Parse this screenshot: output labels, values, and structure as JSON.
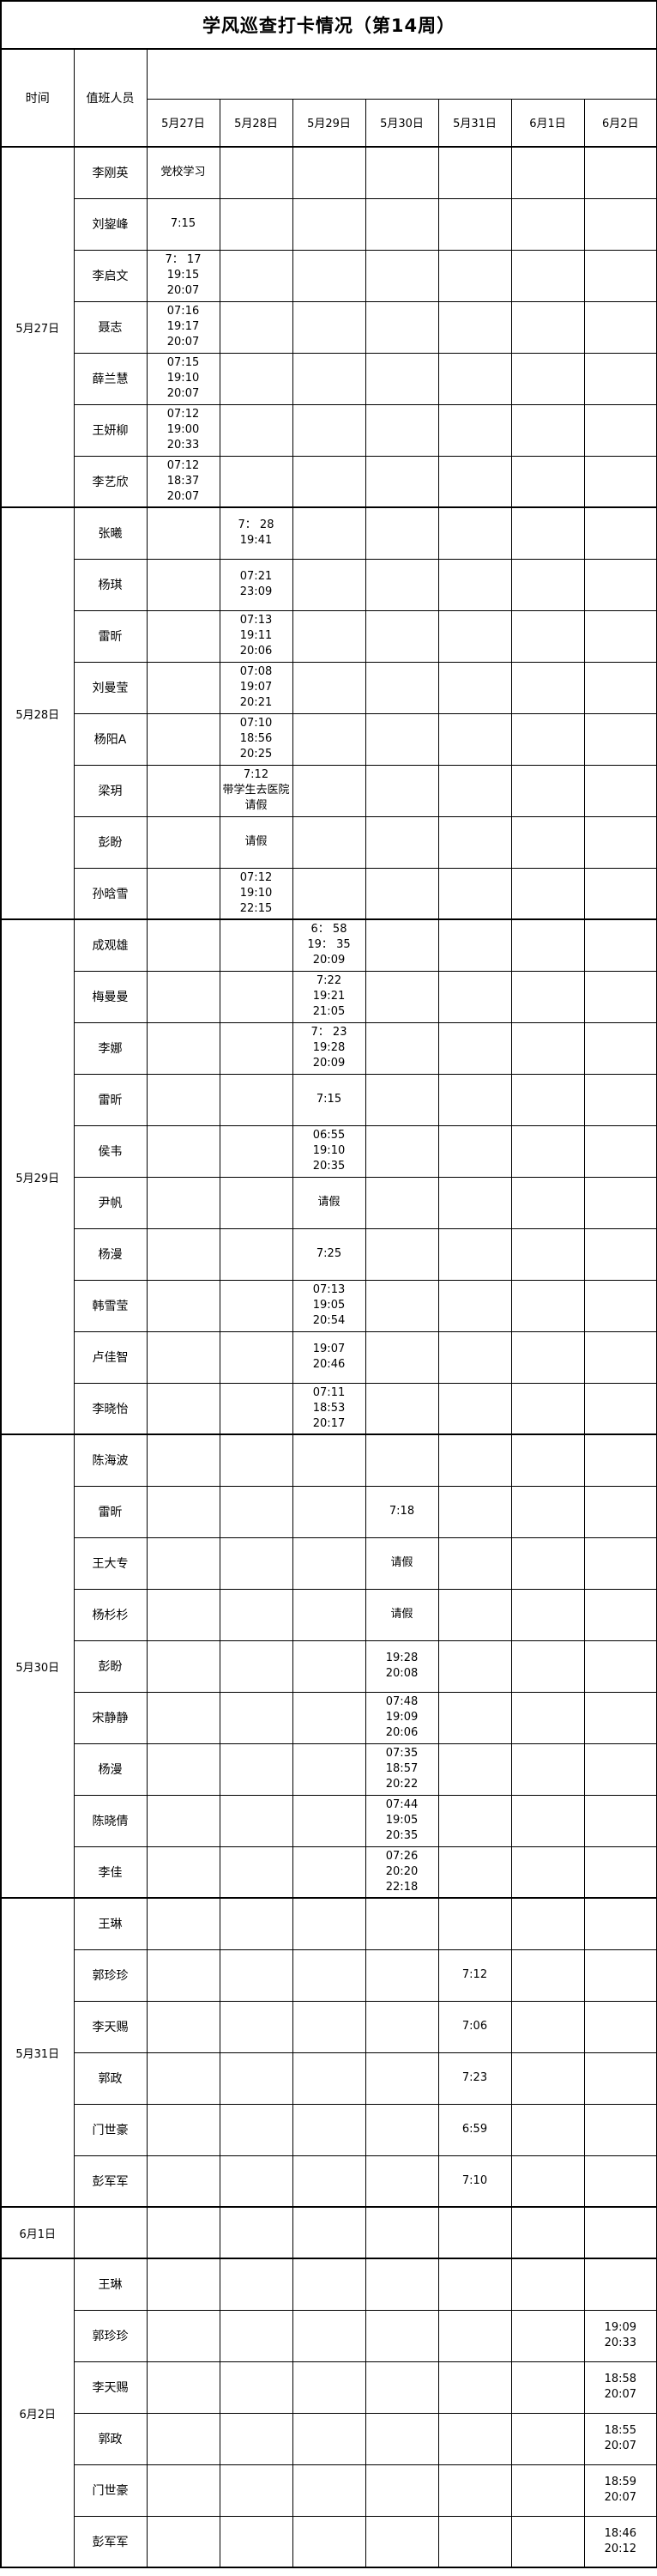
{
  "title": "学风巡查打卡情况（第14周）",
  "header": {
    "time_label": "时间",
    "staff_label": "值班人员",
    "dates": [
      "5月27日",
      "5月28日",
      "5月29日",
      "5月30日",
      "5月31日",
      "6月1日",
      "6月2日"
    ]
  },
  "groups": [
    {
      "date": "5月27日",
      "col": 0,
      "rows": [
        {
          "name": "李刚英",
          "times": [
            "党校学习"
          ]
        },
        {
          "name": "刘鋆峰",
          "times": [
            "7:15"
          ]
        },
        {
          "name": "李启文",
          "times": [
            "7： 17",
            "19:15",
            "20:07"
          ]
        },
        {
          "name": "聂志",
          "times": [
            "07:16",
            "19:17",
            "20:07"
          ]
        },
        {
          "name": "薛兰慧",
          "times": [
            "07:15",
            "19:10",
            "20:07"
          ]
        },
        {
          "name": "王妍柳",
          "times": [
            "07:12",
            "19:00",
            "20:33"
          ]
        },
        {
          "name": "李艺欣",
          "times": [
            "07:12",
            "18:37",
            "20:07"
          ]
        }
      ]
    },
    {
      "date": "5月28日",
      "col": 1,
      "rows": [
        {
          "name": "张曦",
          "times": [
            "7： 28",
            "19:41"
          ]
        },
        {
          "name": "杨琪",
          "times": [
            "07:21",
            "23:09"
          ]
        },
        {
          "name": "雷昕",
          "times": [
            "07:13",
            "19:11",
            "20:06"
          ]
        },
        {
          "name": "刘曼莹",
          "times": [
            "07:08",
            "19:07",
            "20:21"
          ]
        },
        {
          "name": "杨阳A",
          "times": [
            "07:10",
            "18:56",
            "20:25"
          ]
        },
        {
          "name": "梁玥",
          "times": [
            "7:12",
            "带学生去医院请假"
          ]
        },
        {
          "name": "彭盼",
          "times": [
            "请假"
          ]
        },
        {
          "name": "孙晗雪",
          "times": [
            "07:12",
            "19:10",
            "22:15"
          ]
        }
      ]
    },
    {
      "date": "5月29日",
      "col": 2,
      "rows": [
        {
          "name": "成观雄",
          "times": [
            "6： 58",
            "19： 35",
            "20:09"
          ]
        },
        {
          "name": "梅曼曼",
          "times": [
            "7:22",
            "19:21",
            "21:05"
          ]
        },
        {
          "name": "李娜",
          "times": [
            "7： 23",
            "19:28",
            "20:09"
          ]
        },
        {
          "name": "雷昕",
          "times": [
            "7:15"
          ]
        },
        {
          "name": "侯韦",
          "times": [
            "06:55",
            "19:10",
            "20:35"
          ]
        },
        {
          "name": "尹帆",
          "times": [
            "请假"
          ]
        },
        {
          "name": "杨漫",
          "times": [
            "7:25"
          ]
        },
        {
          "name": "韩雪莹",
          "times": [
            "07:13",
            "19:05",
            "20:54"
          ]
        },
        {
          "name": "卢佳智",
          "times": [
            "19:07",
            "20:46"
          ]
        },
        {
          "name": "李晓怡",
          "times": [
            "07:11",
            "18:53",
            "20:17"
          ]
        }
      ]
    },
    {
      "date": "5月30日",
      "col": 3,
      "rows": [
        {
          "name": "陈海波",
          "times": []
        },
        {
          "name": "雷昕",
          "times": [
            "7:18"
          ]
        },
        {
          "name": "王大专",
          "times": [
            "请假"
          ]
        },
        {
          "name": "杨杉杉",
          "times": [
            "请假"
          ]
        },
        {
          "name": "彭盼",
          "times": [
            "19:28",
            "20:08"
          ]
        },
        {
          "name": "宋静静",
          "times": [
            "07:48",
            "19:09",
            "20:06"
          ]
        },
        {
          "name": "杨漫",
          "times": [
            "07:35",
            "18:57",
            "20:22"
          ]
        },
        {
          "name": "陈晓倩",
          "times": [
            "07:44",
            "19:05",
            "20:35"
          ]
        },
        {
          "name": "李佳",
          "times": [
            "07:26",
            "20:20",
            "22:18"
          ]
        }
      ]
    },
    {
      "date": "5月31日",
      "col": 4,
      "rows": [
        {
          "name": "王琳",
          "times": []
        },
        {
          "name": "郭珍珍",
          "times": [
            "7:12"
          ]
        },
        {
          "name": "李天赐",
          "times": [
            "7:06"
          ]
        },
        {
          "name": "郭政",
          "times": [
            "7:23"
          ]
        },
        {
          "name": "门世豪",
          "times": [
            "6:59"
          ]
        },
        {
          "name": "彭军军",
          "times": [
            "7:10"
          ]
        }
      ]
    },
    {
      "date": "6月1日",
      "col": 5,
      "rows": [
        {
          "name": "",
          "times": []
        }
      ]
    },
    {
      "date": "6月2日",
      "col": 6,
      "rows": [
        {
          "name": "王琳",
          "times": []
        },
        {
          "name": "郭珍珍",
          "times": [
            "19:09",
            "20:33"
          ]
        },
        {
          "name": "李天赐",
          "times": [
            "18:58",
            "20:07"
          ]
        },
        {
          "name": "郭政",
          "times": [
            "18:55",
            "20:07"
          ]
        },
        {
          "name": "门世豪",
          "times": [
            "18:59",
            "20:07"
          ]
        },
        {
          "name": "彭军军",
          "times": [
            "18:46",
            "20:12"
          ]
        }
      ]
    }
  ]
}
